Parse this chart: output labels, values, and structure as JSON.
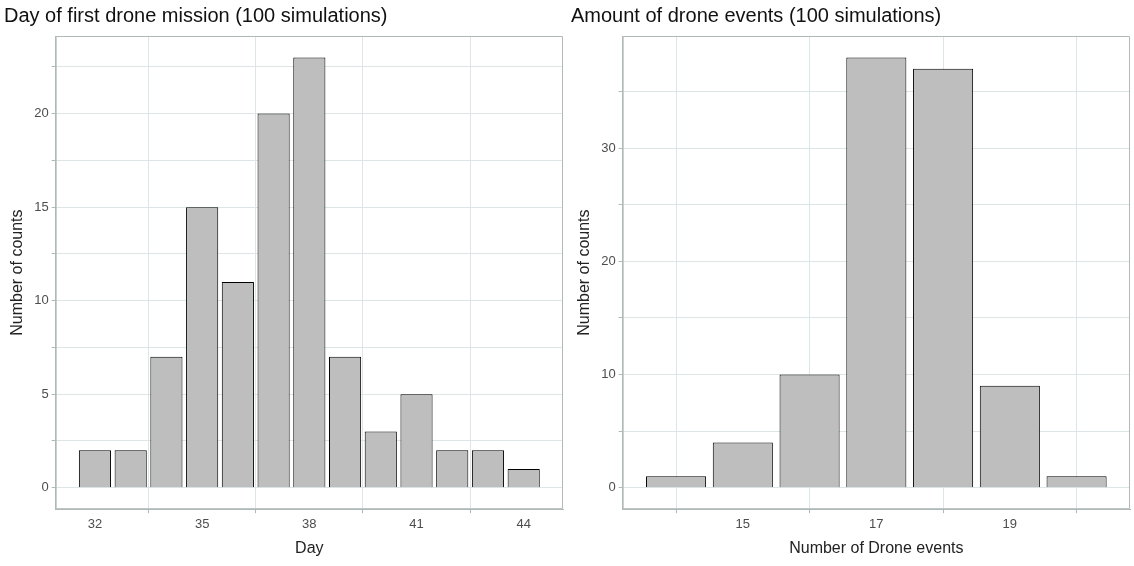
{
  "chart_data": [
    {
      "type": "bar",
      "title": "Day of first drone mission (100 simulations)",
      "xlabel": "Day",
      "ylabel": "Number of counts",
      "x": [
        32,
        33,
        34,
        35,
        36,
        37,
        38,
        39,
        40,
        41,
        42,
        43,
        44
      ],
      "values": [
        2,
        2,
        7,
        15,
        11,
        20,
        23,
        7,
        3,
        5,
        2,
        2,
        1
      ],
      "color": "#bebebe",
      "xlim": [
        30.9,
        45.1
      ],
      "xticks": [
        32,
        35,
        38,
        41,
        44
      ],
      "ylim": [
        -1.15,
        24.15
      ],
      "yticks": [
        0,
        {
          "value": 2.5,
          "label": null
        },
        5,
        {
          "value": 7.5,
          "label": null
        },
        10,
        {
          "value": 12.5,
          "label": null
        },
        15,
        {
          "value": 17.5,
          "label": null
        },
        20,
        {
          "value": 22.5,
          "label": null
        }
      ],
      "grid": true,
      "legend": false
    },
    {
      "type": "bar",
      "title": "Amount of drone events (100 simulations)",
      "xlabel": "Number of Drone events",
      "ylabel": "Number of counts",
      "x": [
        14,
        15,
        16,
        17,
        18,
        19,
        20
      ],
      "values": [
        1,
        4,
        10,
        38,
        37,
        9,
        1
      ],
      "color": "#bebebe",
      "xlim": [
        13.2,
        20.8
      ],
      "xticks": [
        15,
        17,
        19
      ],
      "ylim": [
        -1.9,
        39.9
      ],
      "yticks": [
        0,
        {
          "value": 5,
          "label": null
        },
        10,
        {
          "value": 15,
          "label": null
        },
        20,
        {
          "value": 25,
          "label": null
        },
        30,
        {
          "value": 35,
          "label": null
        }
      ],
      "grid": true,
      "legend": false
    }
  ]
}
